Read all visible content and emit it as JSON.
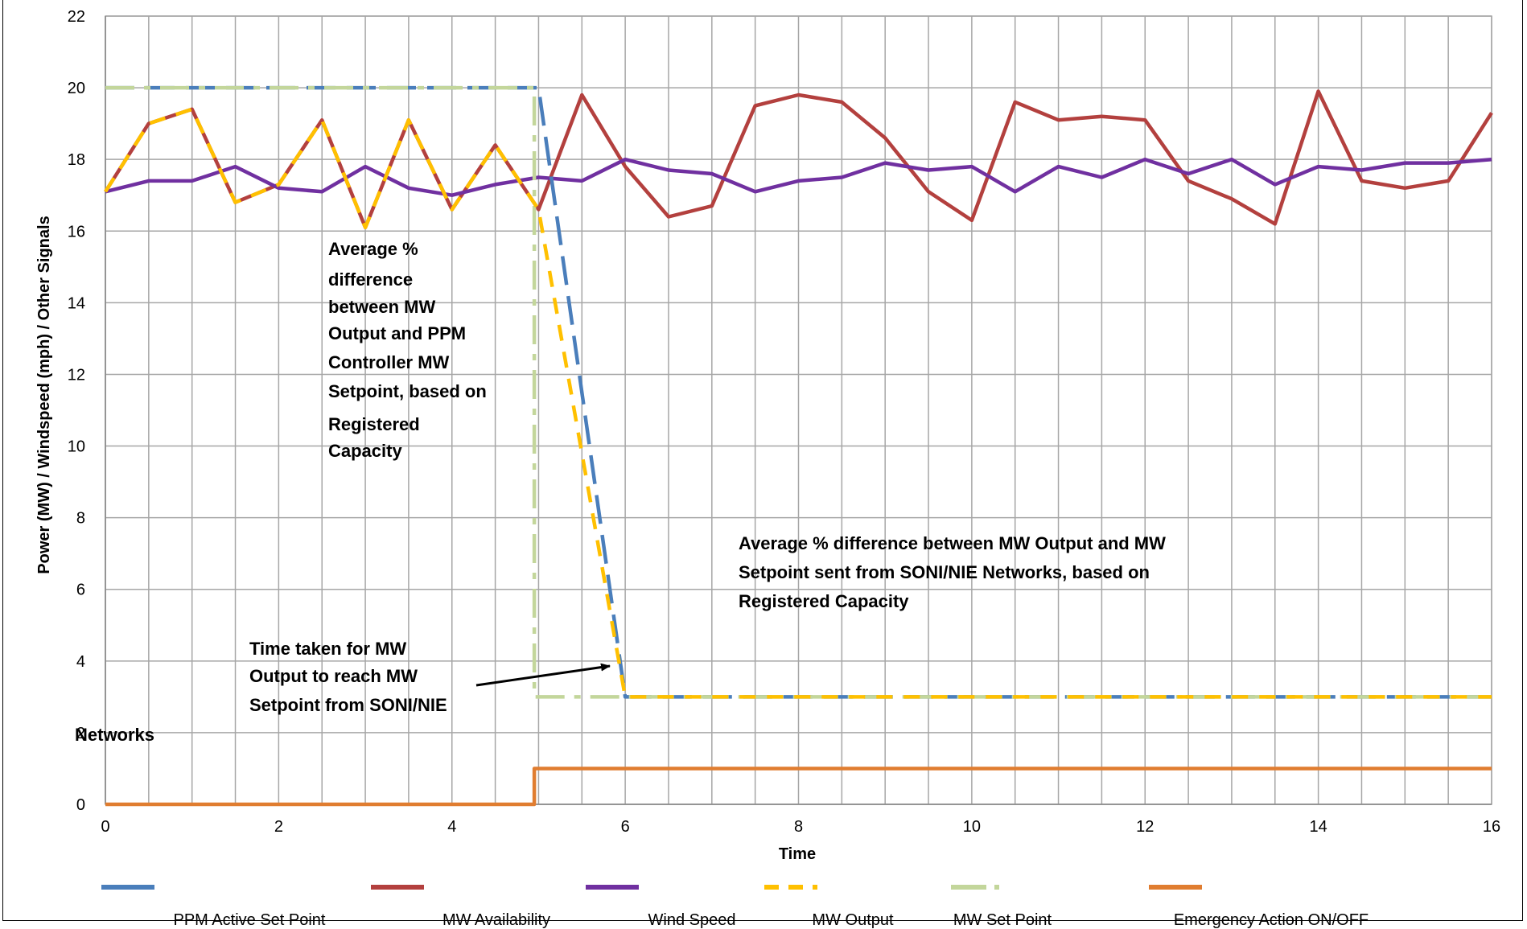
{
  "chart_data": {
    "type": "line",
    "xlabel": "Time",
    "ylabel": "Power (MW) / Windspeed (mph) / Other Signals",
    "xlim": [
      0,
      16
    ],
    "ylim": [
      0,
      22
    ],
    "x_ticks": [
      0,
      2,
      4,
      6,
      8,
      10,
      12,
      14,
      16
    ],
    "y_ticks": [
      0,
      2,
      4,
      6,
      8,
      10,
      12,
      14,
      16,
      18,
      20,
      22
    ],
    "grid": true,
    "legend_position": "bottom",
    "series": [
      {
        "name": "PPM Active Set Point",
        "color": "#4a7ebb",
        "dash": "long-dash",
        "points": [
          [
            0,
            20
          ],
          [
            5,
            20
          ],
          [
            6,
            3
          ],
          [
            16,
            3
          ]
        ]
      },
      {
        "name": "MW Availability",
        "color": "#b3403e",
        "dash": "solid",
        "points": [
          [
            0,
            17.1
          ],
          [
            0.5,
            19
          ],
          [
            1,
            19.4
          ],
          [
            1.5,
            16.8
          ],
          [
            2,
            17.3
          ],
          [
            2.5,
            19.1
          ],
          [
            3,
            16.1
          ],
          [
            3.5,
            19.1
          ],
          [
            4,
            16.6
          ],
          [
            4.5,
            18.4
          ],
          [
            5,
            16.6
          ],
          [
            5.5,
            19.8
          ],
          [
            6,
            17.8
          ],
          [
            6.5,
            16.4
          ],
          [
            7,
            16.7
          ],
          [
            7.5,
            19.5
          ],
          [
            8,
            19.8
          ],
          [
            8.5,
            19.6
          ],
          [
            9,
            18.6
          ],
          [
            9.5,
            17.1
          ],
          [
            10,
            16.3
          ],
          [
            10.5,
            19.6
          ],
          [
            11,
            19.1
          ],
          [
            11.5,
            19.2
          ],
          [
            12,
            19.1
          ],
          [
            12.5,
            17.4
          ],
          [
            13,
            16.9
          ],
          [
            13.5,
            16.2
          ],
          [
            14,
            19.9
          ],
          [
            14.5,
            17.4
          ],
          [
            15,
            17.2
          ],
          [
            15.5,
            17.4
          ],
          [
            16,
            19.3
          ]
        ]
      },
      {
        "name": "Wind Speed",
        "color": "#7030a0",
        "dash": "solid",
        "points": [
          [
            0,
            17.1
          ],
          [
            0.5,
            17.4
          ],
          [
            1,
            17.4
          ],
          [
            1.5,
            17.8
          ],
          [
            2,
            17.2
          ],
          [
            2.5,
            17.1
          ],
          [
            3,
            17.8
          ],
          [
            3.5,
            17.2
          ],
          [
            4,
            17
          ],
          [
            4.5,
            17.3
          ],
          [
            5,
            17.5
          ],
          [
            5.5,
            17.4
          ],
          [
            6,
            18
          ],
          [
            6.5,
            17.7
          ],
          [
            7,
            17.6
          ],
          [
            7.5,
            17.1
          ],
          [
            8,
            17.4
          ],
          [
            8.5,
            17.5
          ],
          [
            9,
            17.9
          ],
          [
            9.5,
            17.7
          ],
          [
            10,
            17.8
          ],
          [
            10.5,
            17.1
          ],
          [
            11,
            17.8
          ],
          [
            11.5,
            17.5
          ],
          [
            12,
            18
          ],
          [
            12.5,
            17.6
          ],
          [
            13,
            18
          ],
          [
            13.5,
            17.3
          ],
          [
            14,
            17.8
          ],
          [
            14.5,
            17.7
          ],
          [
            15,
            17.9
          ],
          [
            15.5,
            17.9
          ],
          [
            16,
            18
          ]
        ]
      },
      {
        "name": "MW Output",
        "color": "#ffc000",
        "dash": "dash",
        "points": [
          [
            0,
            17.1
          ],
          [
            0.5,
            19
          ],
          [
            1,
            19.4
          ],
          [
            1.5,
            16.8
          ],
          [
            2,
            17.3
          ],
          [
            2.5,
            19.1
          ],
          [
            3,
            16.1
          ],
          [
            3.5,
            19.1
          ],
          [
            4,
            16.6
          ],
          [
            4.5,
            18.4
          ],
          [
            5,
            16.6
          ],
          [
            6,
            3
          ],
          [
            16,
            3
          ]
        ]
      },
      {
        "name": "MW Set Point",
        "color": "#c3d69b",
        "dash": "dash-dot",
        "points": [
          [
            0,
            20
          ],
          [
            4.95,
            20
          ],
          [
            4.95,
            3
          ],
          [
            16,
            3
          ]
        ]
      },
      {
        "name": "Emergency Action ON/OFF",
        "color": "#e07d30",
        "dash": "solid",
        "points": [
          [
            0,
            0
          ],
          [
            4.95,
            0
          ],
          [
            4.95,
            1
          ],
          [
            16,
            1
          ]
        ]
      }
    ],
    "annotations": [
      {
        "lines": [
          "Average %",
          "difference",
          "between MW",
          "Output and PPM",
          "Controller MW",
          "Setpoint, based on",
          "Registered",
          "Capacity"
        ]
      },
      {
        "lines": [
          "Average % difference between MW Output and MW",
          "Setpoint sent from SONI/NIE Networks, based on",
          "Registered Capacity"
        ]
      },
      {
        "lines": [
          "Time taken for MW",
          "Output to reach MW",
          "Setpoint from SONI/NIE",
          "Networks"
        ]
      }
    ]
  }
}
